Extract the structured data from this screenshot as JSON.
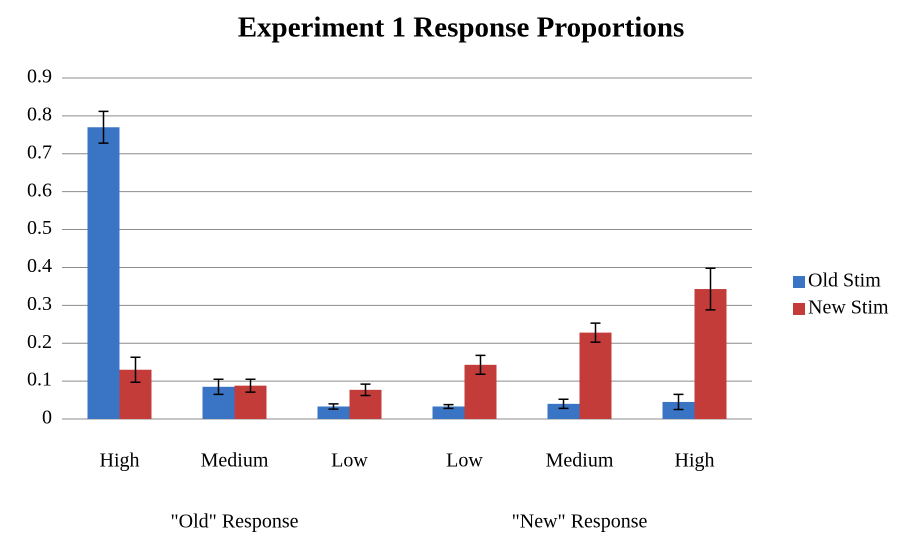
{
  "chart_data": {
    "type": "bar",
    "title": "Experiment 1 Response Proportions",
    "categories": [
      "High",
      "Medium",
      "Low",
      "Low",
      "Medium",
      "High"
    ],
    "group_labels": [
      "\"Old\" Response",
      "\"New\" Response"
    ],
    "series": [
      {
        "name": "Old Stim",
        "color": "#3a74c4",
        "values": [
          0.77,
          0.085,
          0.033,
          0.033,
          0.04,
          0.045
        ],
        "errors": [
          0.042,
          0.02,
          0.007,
          0.005,
          0.012,
          0.02
        ]
      },
      {
        "name": "New Stim",
        "color": "#c43c3a",
        "values": [
          0.13,
          0.088,
          0.077,
          0.143,
          0.228,
          0.343
        ],
        "errors": [
          0.033,
          0.017,
          0.015,
          0.025,
          0.025,
          0.055
        ]
      }
    ],
    "ylim": [
      0,
      0.9
    ],
    "yticks": [
      0,
      0.1,
      0.2,
      0.3,
      0.4,
      0.5,
      0.6,
      0.7,
      0.8,
      0.9
    ],
    "grid": true,
    "legend": "right"
  }
}
